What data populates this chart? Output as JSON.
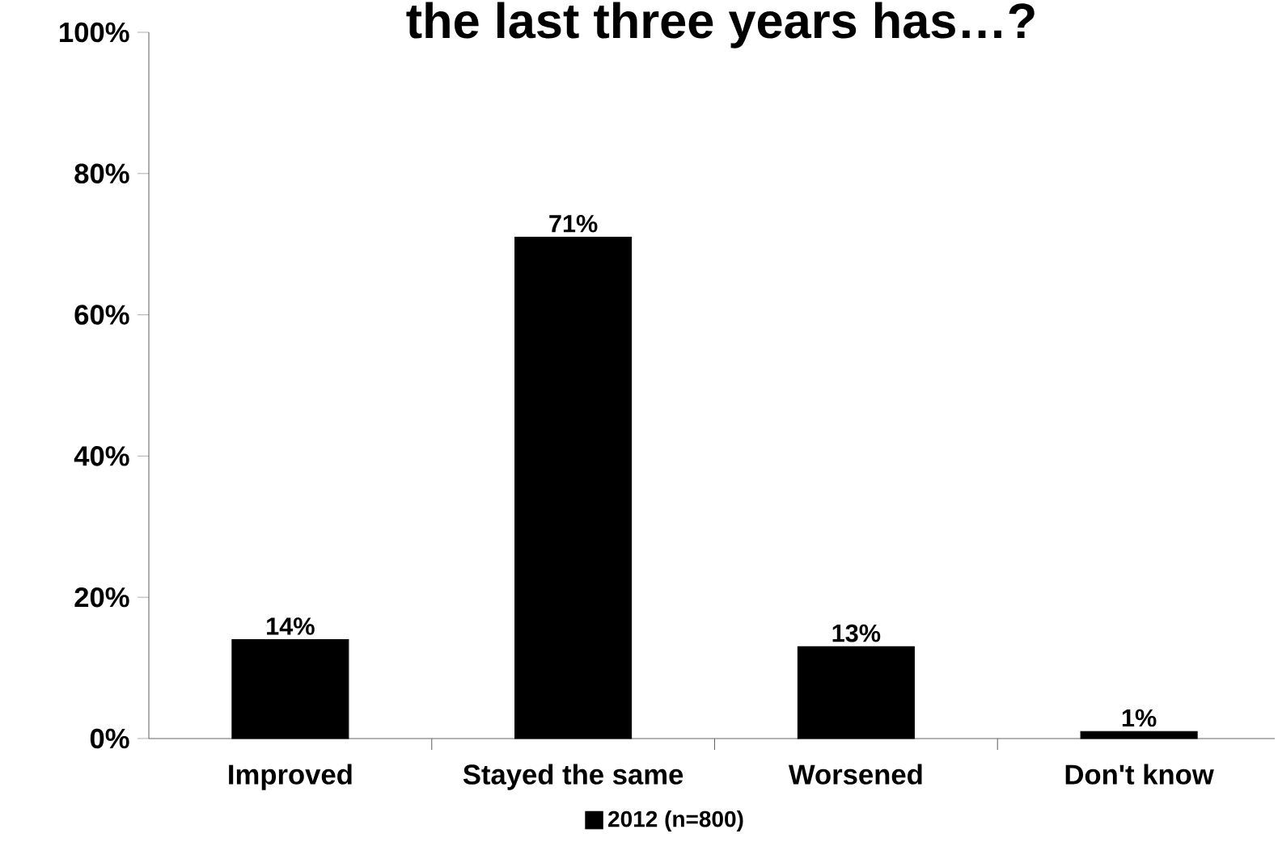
{
  "chart_data": {
    "type": "bar",
    "title": "the last three years has…?",
    "categories": [
      "Improved",
      "Stayed the same",
      "Worsened",
      "Don't know"
    ],
    "series": [
      {
        "name": "2012 (n=800)",
        "color": "#000000",
        "values": [
          14,
          71,
          13,
          1
        ],
        "value_labels": [
          "14%",
          "71%",
          "13%",
          "1%"
        ]
      }
    ],
    "ylim": [
      0,
      100
    ],
    "yticks": [
      {
        "value": 0,
        "label": "0%"
      },
      {
        "value": 20,
        "label": "20%"
      },
      {
        "value": 40,
        "label": "40%"
      },
      {
        "value": 60,
        "label": "60%"
      },
      {
        "value": 80,
        "label": "80%"
      },
      {
        "value": 100,
        "label": "100%"
      }
    ],
    "legend": "bottom",
    "grid": false
  }
}
